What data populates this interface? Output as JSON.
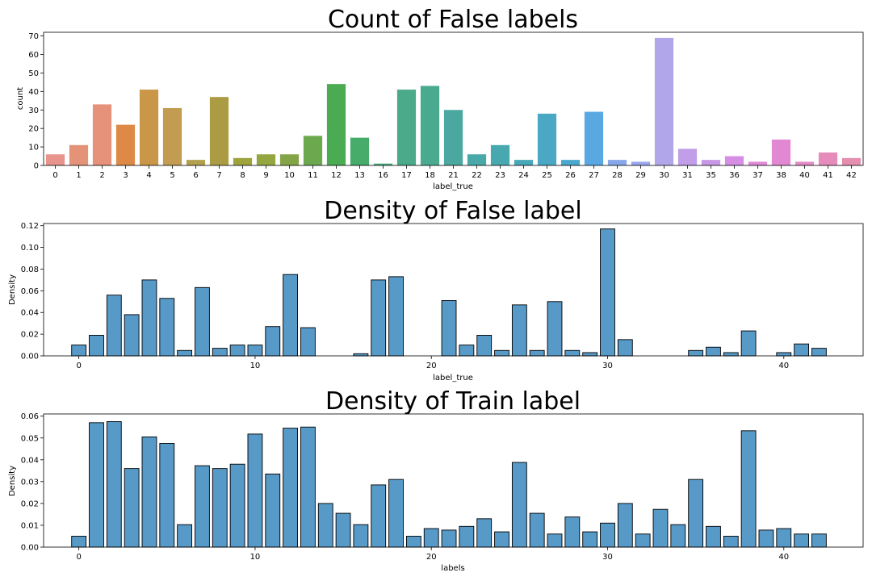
{
  "chart_data": [
    {
      "type": "bar",
      "title": "Count of False labels",
      "xlabel": "label_true",
      "ylabel": "count",
      "ylim": [
        0,
        72
      ],
      "yticks": [
        "0",
        "10",
        "20",
        "30",
        "40",
        "50",
        "60",
        "70"
      ],
      "categories": [
        "0",
        "1",
        "2",
        "3",
        "4",
        "5",
        "6",
        "7",
        "8",
        "9",
        "10",
        "11",
        "12",
        "13",
        "16",
        "17",
        "18",
        "21",
        "22",
        "23",
        "24",
        "25",
        "26",
        "27",
        "28",
        "29",
        "30",
        "31",
        "35",
        "36",
        "37",
        "38",
        "40",
        "41",
        "42"
      ],
      "values": [
        6,
        11,
        33,
        22,
        41,
        31,
        3,
        37,
        4,
        6,
        6,
        16,
        44,
        15,
        1,
        41,
        43,
        30,
        6,
        11,
        3,
        28,
        3,
        29,
        3,
        2,
        69,
        9,
        3,
        5,
        2,
        14,
        2,
        7,
        4
      ],
      "colors": [
        "#e8938c",
        "#e49278",
        "#e6927b",
        "#de8a46",
        "#ca9647",
        "#c29c50",
        "#b3a04e",
        "#ab9c43",
        "#9ea43c",
        "#94a640",
        "#84a547",
        "#6ca84d",
        "#4aab52",
        "#47ab6a",
        "#48aa7d",
        "#4aaa8a",
        "#4aaa90",
        "#4aa8a0",
        "#49a8a8",
        "#48a8b0",
        "#48a8b8",
        "#4aa8c4",
        "#4aa8cc",
        "#5aa8e2",
        "#86a8ea",
        "#9aa6ee",
        "#b2a6ea",
        "#c09ee8",
        "#c898e6",
        "#d68ee4",
        "#e08ad8",
        "#e288d2",
        "#e48cc6",
        "#e68cba",
        "#e68eb0"
      ],
      "grid": false
    },
    {
      "type": "bar",
      "title": "Density of False label",
      "xlabel": "label_true",
      "ylabel": "Density",
      "ylim": [
        0,
        0.122
      ],
      "yticks": [
        "0.00",
        "0.02",
        "0.04",
        "0.06",
        "0.08",
        "0.10",
        "0.12"
      ],
      "xticks": [
        0,
        10,
        20,
        30,
        40
      ],
      "xlim": [
        -2,
        44.5
      ],
      "x": [
        0,
        1,
        2,
        3,
        4,
        5,
        6,
        7,
        8,
        9,
        10,
        11,
        12,
        13,
        16,
        17,
        18,
        21,
        22,
        23,
        24,
        25,
        26,
        27,
        28,
        29,
        30,
        31,
        35,
        36,
        37,
        38,
        40,
        41,
        42
      ],
      "values": [
        0.01,
        0.019,
        0.056,
        0.038,
        0.07,
        0.053,
        0.005,
        0.063,
        0.007,
        0.01,
        0.01,
        0.027,
        0.075,
        0.026,
        0.002,
        0.07,
        0.073,
        0.051,
        0.01,
        0.019,
        0.005,
        0.047,
        0.005,
        0.05,
        0.005,
        0.003,
        0.117,
        0.015,
        0.005,
        0.008,
        0.003,
        0.023,
        0.003,
        0.011,
        0.007
      ],
      "bar_color": "#5799c7",
      "grid": false
    },
    {
      "type": "bar",
      "title": "Density of Train label",
      "xlabel": "labels",
      "ylabel": "Density",
      "ylim": [
        0,
        0.061
      ],
      "yticks": [
        "0.00",
        "0.01",
        "0.02",
        "0.03",
        "0.04",
        "0.05",
        "0.06"
      ],
      "xticks": [
        0,
        10,
        20,
        30,
        40
      ],
      "xlim": [
        -2,
        44.5
      ],
      "x": [
        0,
        1,
        2,
        3,
        4,
        5,
        6,
        7,
        8,
        9,
        10,
        11,
        12,
        13,
        14,
        15,
        16,
        17,
        18,
        19,
        20,
        21,
        22,
        23,
        24,
        25,
        26,
        27,
        28,
        29,
        30,
        31,
        32,
        33,
        34,
        35,
        36,
        37,
        38,
        39,
        40,
        41,
        42
      ],
      "values": [
        0.005,
        0.057,
        0.0575,
        0.036,
        0.0505,
        0.0475,
        0.0103,
        0.0373,
        0.036,
        0.038,
        0.0518,
        0.0335,
        0.0545,
        0.055,
        0.02,
        0.0155,
        0.0103,
        0.0285,
        0.031,
        0.005,
        0.0085,
        0.0078,
        0.0095,
        0.013,
        0.007,
        0.0388,
        0.0155,
        0.006,
        0.0138,
        0.007,
        0.011,
        0.02,
        0.006,
        0.0173,
        0.0103,
        0.031,
        0.0095,
        0.005,
        0.0533,
        0.0078,
        0.0085,
        0.006,
        0.006
      ],
      "bar_color": "#5799c7",
      "grid": false
    }
  ]
}
